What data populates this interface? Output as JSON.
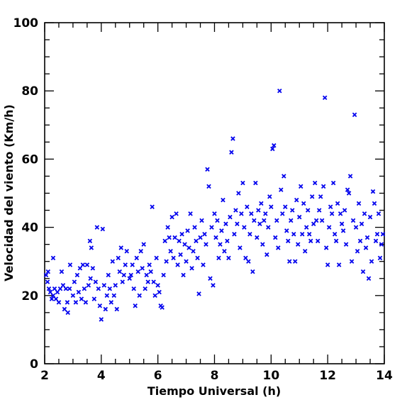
{
  "chart_data": {
    "type": "scatter",
    "title": "",
    "xlabel": "Tiempo Universal (h)",
    "ylabel": "Velocidad del viento (Km/h)",
    "xlim": [
      2,
      14
    ],
    "ylim": [
      0,
      100
    ],
    "x_ticks": [
      2,
      4,
      6,
      8,
      10,
      12,
      14
    ],
    "y_ticks": [
      0,
      20,
      40,
      60,
      80,
      100
    ],
    "grid": false,
    "marker": "x",
    "marker_color": "#0000ee",
    "series": [
      {
        "points": [
          [
            2.05,
            26
          ],
          [
            2.1,
            24
          ],
          [
            2.12,
            27
          ],
          [
            2.15,
            22
          ],
          [
            2.2,
            21
          ],
          [
            2.25,
            19
          ],
          [
            2.3,
            20
          ],
          [
            2.3,
            31
          ],
          [
            2.35,
            22
          ],
          [
            2.4,
            19
          ],
          [
            2.45,
            21
          ],
          [
            2.5,
            18
          ],
          [
            2.55,
            22
          ],
          [
            2.6,
            27
          ],
          [
            2.65,
            23
          ],
          [
            2.7,
            16
          ],
          [
            2.75,
            22
          ],
          [
            2.8,
            18
          ],
          [
            2.82,
            15
          ],
          [
            2.88,
            22
          ],
          [
            2.9,
            29
          ],
          [
            3.0,
            20
          ],
          [
            3.05,
            24
          ],
          [
            3.1,
            18
          ],
          [
            3.15,
            26
          ],
          [
            3.2,
            21
          ],
          [
            3.25,
            28
          ],
          [
            3.3,
            19
          ],
          [
            3.35,
            29
          ],
          [
            3.4,
            22
          ],
          [
            3.45,
            18
          ],
          [
            3.5,
            29
          ],
          [
            3.55,
            23
          ],
          [
            3.6,
            36
          ],
          [
            3.62,
            25
          ],
          [
            3.65,
            34
          ],
          [
            3.7,
            28
          ],
          [
            3.75,
            19
          ],
          [
            3.8,
            24
          ],
          [
            3.85,
            40
          ],
          [
            3.9,
            22
          ],
          [
            3.95,
            17
          ],
          [
            4.0,
            13
          ],
          [
            4.05,
            39.5
          ],
          [
            4.1,
            23
          ],
          [
            4.15,
            16
          ],
          [
            4.2,
            20
          ],
          [
            4.25,
            26
          ],
          [
            4.3,
            22
          ],
          [
            4.35,
            18
          ],
          [
            4.4,
            30
          ],
          [
            4.45,
            20
          ],
          [
            4.5,
            23
          ],
          [
            4.55,
            16
          ],
          [
            4.6,
            31
          ],
          [
            4.65,
            27
          ],
          [
            4.7,
            34
          ],
          [
            4.75,
            24
          ],
          [
            4.8,
            26
          ],
          [
            4.85,
            29
          ],
          [
            4.9,
            33
          ],
          [
            5.0,
            25
          ],
          [
            5.05,
            26
          ],
          [
            5.1,
            29
          ],
          [
            5.15,
            22
          ],
          [
            5.2,
            17
          ],
          [
            5.25,
            31
          ],
          [
            5.3,
            27
          ],
          [
            5.35,
            20
          ],
          [
            5.4,
            33
          ],
          [
            5.45,
            28
          ],
          [
            5.5,
            35
          ],
          [
            5.55,
            22
          ],
          [
            5.6,
            26
          ],
          [
            5.65,
            24
          ],
          [
            5.7,
            29
          ],
          [
            5.75,
            27
          ],
          [
            5.8,
            46
          ],
          [
            5.85,
            24
          ],
          [
            5.9,
            20
          ],
          [
            5.95,
            31
          ],
          [
            6.0,
            23
          ],
          [
            6.05,
            21
          ],
          [
            6.1,
            17
          ],
          [
            6.15,
            16.5
          ],
          [
            6.2,
            26
          ],
          [
            6.25,
            36
          ],
          [
            6.3,
            30
          ],
          [
            6.35,
            40
          ],
          [
            6.4,
            37
          ],
          [
            6.45,
            33
          ],
          [
            6.5,
            43
          ],
          [
            6.55,
            31
          ],
          [
            6.6,
            37
          ],
          [
            6.65,
            44
          ],
          [
            6.7,
            29
          ],
          [
            6.75,
            36
          ],
          [
            6.8,
            32
          ],
          [
            6.85,
            38
          ],
          [
            6.9,
            26
          ],
          [
            6.95,
            35
          ],
          [
            7.0,
            30
          ],
          [
            7.05,
            39
          ],
          [
            7.1,
            34
          ],
          [
            7.15,
            44
          ],
          [
            7.2,
            28
          ],
          [
            7.25,
            33
          ],
          [
            7.3,
            40
          ],
          [
            7.35,
            36
          ],
          [
            7.4,
            31
          ],
          [
            7.45,
            20.5
          ],
          [
            7.5,
            37
          ],
          [
            7.55,
            42
          ],
          [
            7.6,
            29
          ],
          [
            7.65,
            38
          ],
          [
            7.7,
            35
          ],
          [
            7.75,
            57
          ],
          [
            7.8,
            52
          ],
          [
            7.85,
            25
          ],
          [
            7.9,
            40
          ],
          [
            7.95,
            23
          ],
          [
            8.0,
            44
          ],
          [
            8.05,
            37
          ],
          [
            8.1,
            42
          ],
          [
            8.15,
            31
          ],
          [
            8.2,
            35
          ],
          [
            8.25,
            39
          ],
          [
            8.3,
            48
          ],
          [
            8.35,
            33
          ],
          [
            8.4,
            41
          ],
          [
            8.45,
            36
          ],
          [
            8.5,
            31
          ],
          [
            8.55,
            43
          ],
          [
            8.6,
            62
          ],
          [
            8.65,
            66
          ],
          [
            8.7,
            38
          ],
          [
            8.75,
            45
          ],
          [
            8.8,
            41
          ],
          [
            8.85,
            50
          ],
          [
            8.9,
            34
          ],
          [
            8.95,
            44
          ],
          [
            9.0,
            53
          ],
          [
            9.05,
            40
          ],
          [
            9.1,
            31
          ],
          [
            9.15,
            46
          ],
          [
            9.2,
            30
          ],
          [
            9.25,
            38
          ],
          [
            9.3,
            44
          ],
          [
            9.35,
            27
          ],
          [
            9.4,
            42
          ],
          [
            9.45,
            53
          ],
          [
            9.5,
            37
          ],
          [
            9.55,
            45
          ],
          [
            9.6,
            41
          ],
          [
            9.65,
            47
          ],
          [
            9.7,
            35
          ],
          [
            9.75,
            42
          ],
          [
            9.8,
            44
          ],
          [
            9.85,
            32
          ],
          [
            9.9,
            40
          ],
          [
            9.95,
            49
          ],
          [
            10.0,
            46
          ],
          [
            10.05,
            63
          ],
          [
            10.1,
            64
          ],
          [
            10.15,
            37
          ],
          [
            10.2,
            42
          ],
          [
            10.25,
            34
          ],
          [
            10.3,
            80
          ],
          [
            10.35,
            51
          ],
          [
            10.4,
            44
          ],
          [
            10.45,
            55
          ],
          [
            10.5,
            46
          ],
          [
            10.55,
            39
          ],
          [
            10.6,
            36
          ],
          [
            10.65,
            30
          ],
          [
            10.7,
            42
          ],
          [
            10.75,
            45
          ],
          [
            10.8,
            38
          ],
          [
            10.85,
            30
          ],
          [
            10.9,
            48
          ],
          [
            10.95,
            35
          ],
          [
            11.0,
            43
          ],
          [
            11.05,
            52
          ],
          [
            11.1,
            38
          ],
          [
            11.15,
            47
          ],
          [
            11.2,
            33
          ],
          [
            11.25,
            40
          ],
          [
            11.3,
            45
          ],
          [
            11.35,
            38
          ],
          [
            11.4,
            36
          ],
          [
            11.45,
            49
          ],
          [
            11.5,
            41
          ],
          [
            11.55,
            53
          ],
          [
            11.6,
            42
          ],
          [
            11.65,
            36
          ],
          [
            11.7,
            45
          ],
          [
            11.75,
            49
          ],
          [
            11.8,
            42
          ],
          [
            11.85,
            52
          ],
          [
            11.9,
            78
          ],
          [
            11.95,
            34
          ],
          [
            12.0,
            29
          ],
          [
            12.05,
            40
          ],
          [
            12.1,
            46
          ],
          [
            12.15,
            44
          ],
          [
            12.2,
            53
          ],
          [
            12.25,
            38
          ],
          [
            12.3,
            36
          ],
          [
            12.35,
            47
          ],
          [
            12.4,
            29
          ],
          [
            12.45,
            44
          ],
          [
            12.5,
            41
          ],
          [
            12.55,
            39
          ],
          [
            12.6,
            45
          ],
          [
            12.65,
            35
          ],
          [
            12.7,
            51
          ],
          [
            12.75,
            50
          ],
          [
            12.8,
            55
          ],
          [
            12.85,
            30
          ],
          [
            12.9,
            42
          ],
          [
            12.95,
            73
          ],
          [
            13.0,
            40
          ],
          [
            13.05,
            33
          ],
          [
            13.1,
            47
          ],
          [
            13.15,
            36
          ],
          [
            13.2,
            41
          ],
          [
            13.25,
            27
          ],
          [
            13.3,
            44
          ],
          [
            13.35,
            34
          ],
          [
            13.4,
            37
          ],
          [
            13.45,
            25
          ],
          [
            13.5,
            43
          ],
          [
            13.55,
            30
          ],
          [
            13.6,
            50.5
          ],
          [
            13.65,
            47
          ],
          [
            13.7,
            36
          ],
          [
            13.75,
            38
          ],
          [
            13.8,
            44
          ],
          [
            13.85,
            31
          ],
          [
            13.9,
            35
          ],
          [
            13.95,
            38
          ]
        ]
      }
    ]
  }
}
